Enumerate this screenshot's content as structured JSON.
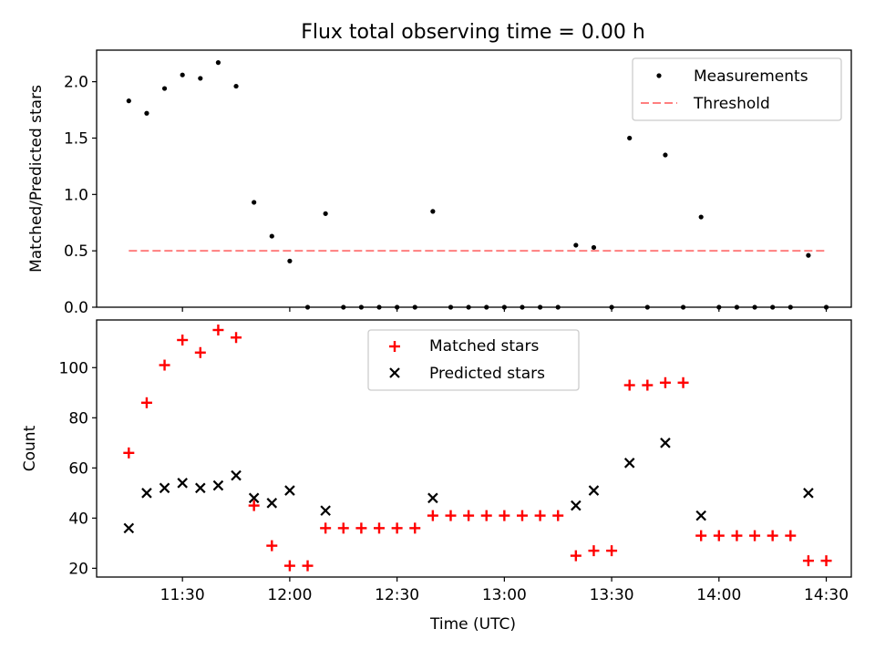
{
  "figure": {
    "title": "Flux total observing time = 0.00 h"
  },
  "chart_data": [
    {
      "type": "scatter",
      "ylabel": "Matched/Predicted stars",
      "xlabel": "",
      "ylim": [
        0,
        2.28
      ],
      "yticks": [
        "0.0",
        "0.5",
        "1.0",
        "1.5",
        "2.0"
      ],
      "grid": false,
      "legend_position": "top-right",
      "series": [
        {
          "name": "Measurements",
          "kind": "points",
          "color": "#000000",
          "x": [
            "11:15",
            "11:20",
            "11:25",
            "11:30",
            "11:35",
            "11:40",
            "11:45",
            "11:50",
            "11:55",
            "12:00",
            "12:05",
            "12:10",
            "12:15",
            "12:20",
            "12:25",
            "12:30",
            "12:35",
            "12:40",
            "12:45",
            "12:50",
            "12:55",
            "13:00",
            "13:05",
            "13:10",
            "13:15",
            "13:20",
            "13:25",
            "13:30",
            "13:35",
            "13:40",
            "13:45",
            "13:50",
            "13:55",
            "14:00",
            "14:05",
            "14:10",
            "14:15",
            "14:20",
            "14:25",
            "14:30"
          ],
          "values": [
            1.83,
            1.72,
            1.94,
            2.06,
            2.03,
            2.17,
            1.96,
            0.93,
            0.63,
            0.41,
            0.0,
            0.83,
            0.0,
            0.0,
            0.0,
            0.0,
            0.0,
            0.85,
            0.0,
            0.0,
            0.0,
            0.0,
            0.0,
            0.0,
            0.0,
            0.55,
            0.53,
            0.0,
            1.5,
            0.0,
            1.35,
            0.0,
            0.8,
            0.0,
            0.0,
            0.0,
            0.0,
            0.0,
            0.46,
            0.0
          ]
        },
        {
          "name": "Threshold",
          "kind": "dashed-line",
          "color": "#ff7f7f",
          "x": [
            "11:15",
            "14:30"
          ],
          "values": [
            0.5,
            0.5
          ]
        }
      ]
    },
    {
      "type": "scatter",
      "xlabel": "Time (UTC)",
      "ylabel": "Count",
      "ylim": [
        16.5,
        119
      ],
      "yticks": [
        "20",
        "40",
        "60",
        "80",
        "100"
      ],
      "xticks": [
        "11:30",
        "12:00",
        "12:30",
        "13:00",
        "13:30",
        "14:00",
        "14:30"
      ],
      "xlim": [
        "11:06",
        "14:37"
      ],
      "grid": false,
      "legend_position": "top-center",
      "series": [
        {
          "name": "Matched stars",
          "kind": "plus",
          "color": "#ff0000",
          "x": [
            "11:15",
            "11:20",
            "11:25",
            "11:30",
            "11:35",
            "11:40",
            "11:45",
            "11:50",
            "11:55",
            "12:00",
            "12:05",
            "12:10",
            "12:15",
            "12:20",
            "12:25",
            "12:30",
            "12:35",
            "12:40",
            "12:45",
            "12:50",
            "12:55",
            "13:00",
            "13:05",
            "13:10",
            "13:15",
            "13:20",
            "13:25",
            "13:30",
            "13:35",
            "13:40",
            "13:45",
            "13:50",
            "13:55",
            "14:00",
            "14:05",
            "14:10",
            "14:15",
            "14:20",
            "14:25",
            "14:30"
          ],
          "values": [
            66,
            86,
            101,
            111,
            106,
            115,
            112,
            45,
            29,
            21,
            21,
            36,
            36,
            36,
            36,
            36,
            36,
            41,
            41,
            41,
            41,
            41,
            41,
            41,
            41,
            25,
            27,
            27,
            93,
            93,
            94,
            94,
            33,
            33,
            33,
            33,
            33,
            33,
            23,
            23
          ]
        },
        {
          "name": "Predicted stars",
          "kind": "cross",
          "color": "#000000",
          "x": [
            "11:15",
            "11:20",
            "11:25",
            "11:30",
            "11:35",
            "11:40",
            "11:45",
            "11:50",
            "11:55",
            "12:00",
            "12:10",
            "12:40",
            "13:20",
            "13:25",
            "13:35",
            "13:45",
            "13:55",
            "14:25"
          ],
          "values": [
            36,
            50,
            52,
            54,
            52,
            53,
            57,
            48,
            46,
            51,
            43,
            48,
            45,
            51,
            62,
            70,
            41,
            50
          ]
        }
      ]
    }
  ]
}
